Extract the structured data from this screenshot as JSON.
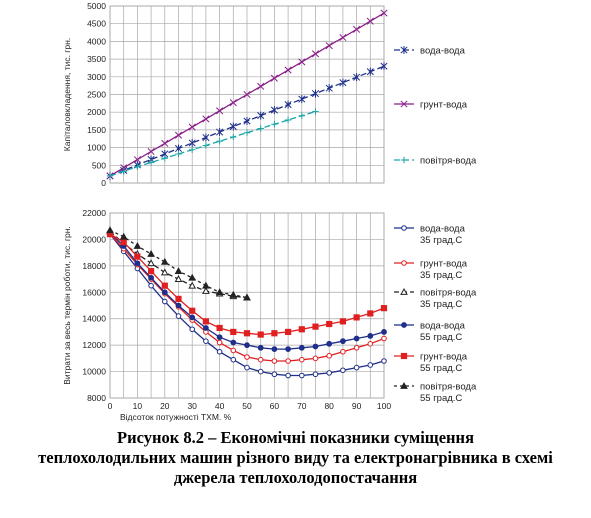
{
  "chart_data": [
    {
      "type": "line",
      "ylabel": "Капіталовкладення, тис. грн.",
      "ylim": [
        0,
        5000
      ],
      "yticks": [
        0,
        500,
        1000,
        1500,
        2000,
        2500,
        3000,
        3500,
        4000,
        4500,
        5000
      ],
      "xlim": [
        0,
        100
      ],
      "grid": true,
      "legend_position": "right",
      "series": [
        {
          "name": "вода-вода",
          "color": "#1f2f8a",
          "marker": "asterisk",
          "dash": "6,3",
          "x": [
            0,
            5,
            10,
            15,
            20,
            25,
            30,
            35,
            40,
            45,
            50,
            55,
            60,
            65,
            70,
            75,
            80,
            85,
            90,
            95,
            100
          ],
          "y": [
            200,
            355,
            510,
            665,
            820,
            975,
            1130,
            1285,
            1440,
            1595,
            1750,
            1905,
            2060,
            2215,
            2370,
            2525,
            2680,
            2835,
            2990,
            3145,
            3300
          ]
        },
        {
          "name": "грунт-вода",
          "color": "#8a1f8a",
          "marker": "x",
          "dash": "",
          "x": [
            0,
            5,
            10,
            15,
            20,
            25,
            30,
            35,
            40,
            45,
            50,
            55,
            60,
            65,
            70,
            75,
            80,
            85,
            90,
            95,
            100
          ],
          "y": [
            200,
            430,
            660,
            890,
            1120,
            1350,
            1580,
            1810,
            2040,
            2270,
            2500,
            2730,
            2960,
            3190,
            3420,
            3650,
            3880,
            4110,
            4340,
            4570,
            4800
          ]
        },
        {
          "name": "повітря-вода",
          "color": "#1aa6a6",
          "marker": "plus",
          "dash": "6,3",
          "x": [
            0,
            5,
            10,
            15,
            20,
            25,
            30,
            35,
            40,
            45,
            50,
            55,
            60,
            65,
            70,
            75
          ],
          "y": [
            200,
            330,
            460,
            580,
            700,
            820,
            940,
            1060,
            1180,
            1300,
            1420,
            1540,
            1660,
            1780,
            1900,
            2020
          ]
        }
      ]
    },
    {
      "type": "line",
      "xlabel": "Відсоток потужності ТХМ. %",
      "ylabel": "Витрати за весь термін роботи, тис. грн.",
      "ylim": [
        8000,
        22000
      ],
      "yticks": [
        8000,
        10000,
        12000,
        14000,
        16000,
        18000,
        20000,
        22000
      ],
      "xlim": [
        0,
        100
      ],
      "xticks": [
        0,
        10,
        20,
        30,
        40,
        50,
        60,
        70,
        80,
        90,
        100
      ],
      "grid": true,
      "legend_position": "right",
      "series": [
        {
          "name": [
            "вода-вода",
            "35 град.С"
          ],
          "color": "#1f2f8a",
          "marker": "circle-open",
          "dash": "",
          "x": [
            0,
            5,
            10,
            15,
            20,
            25,
            30,
            35,
            40,
            45,
            50,
            55,
            60,
            65,
            70,
            75,
            80,
            85,
            90,
            95,
            100
          ],
          "y": [
            20400,
            19100,
            17800,
            16500,
            15300,
            14200,
            13200,
            12300,
            11500,
            10900,
            10300,
            10000,
            9800,
            9700,
            9700,
            9800,
            9900,
            10100,
            10300,
            10500,
            10800
          ]
        },
        {
          "name": [
            "грунт-вода",
            "35 град.С"
          ],
          "color": "#e02020",
          "marker": "circle-open",
          "dash": "",
          "x": [
            0,
            5,
            10,
            15,
            20,
            25,
            30,
            35,
            40,
            45,
            50,
            55,
            60,
            65,
            70,
            75,
            80,
            85,
            90,
            95,
            100
          ],
          "y": [
            20400,
            19300,
            18100,
            17000,
            15900,
            14900,
            13900,
            13000,
            12200,
            11600,
            11100,
            10900,
            10800,
            10800,
            10900,
            11000,
            11200,
            11500,
            11800,
            12100,
            12500
          ]
        },
        {
          "name": [
            "повітря-вода",
            "35 град.С"
          ],
          "color": "#222222",
          "marker": "triangle-open",
          "dash": "5,3",
          "x": [
            0,
            5,
            10,
            15,
            20,
            25,
            30,
            35,
            40,
            45,
            50
          ],
          "y": [
            20600,
            19700,
            18900,
            18200,
            17500,
            17000,
            16500,
            16100,
            15900,
            15700,
            15600
          ]
        },
        {
          "name": [
            "вода-вода",
            "55 град.С"
          ],
          "color": "#1f2f8a",
          "marker": "circle-filled",
          "dash": "",
          "x": [
            0,
            5,
            10,
            15,
            20,
            25,
            30,
            35,
            40,
            45,
            50,
            55,
            60,
            65,
            70,
            75,
            80,
            85,
            90,
            95,
            100
          ],
          "y": [
            20500,
            19500,
            18200,
            17100,
            16000,
            15000,
            14100,
            13300,
            12600,
            12200,
            12000,
            11800,
            11700,
            11700,
            11800,
            11900,
            12100,
            12300,
            12500,
            12700,
            13000
          ]
        },
        {
          "name": [
            "грунт-вода",
            "55 град.С"
          ],
          "color": "#e02020",
          "marker": "square-filled",
          "dash": "",
          "x": [
            0,
            5,
            10,
            15,
            20,
            25,
            30,
            35,
            40,
            45,
            50,
            55,
            60,
            65,
            70,
            75,
            80,
            85,
            90,
            95,
            100
          ],
          "y": [
            20400,
            19800,
            18700,
            17600,
            16500,
            15500,
            14600,
            13800,
            13300,
            13000,
            12900,
            12800,
            12900,
            13000,
            13200,
            13400,
            13600,
            13800,
            14100,
            14400,
            14800
          ]
        },
        {
          "name": [
            "повітря-вода",
            "55 град.С"
          ],
          "color": "#222222",
          "marker": "triangle-filled",
          "dash": "3,3",
          "x": [
            0,
            5,
            10,
            15,
            20,
            25,
            30,
            35,
            40,
            45,
            50
          ],
          "y": [
            20700,
            20200,
            19500,
            18900,
            18300,
            17600,
            17100,
            16500,
            16000,
            15800,
            15600
          ]
        }
      ]
    }
  ],
  "caption": {
    "line1": "Рисунок 8.2 – Економічні показники суміщення",
    "line2": "теплохолодильних машин різного виду та електронагрівника в схемі",
    "line3": "джерела теплохолодопостачання"
  }
}
